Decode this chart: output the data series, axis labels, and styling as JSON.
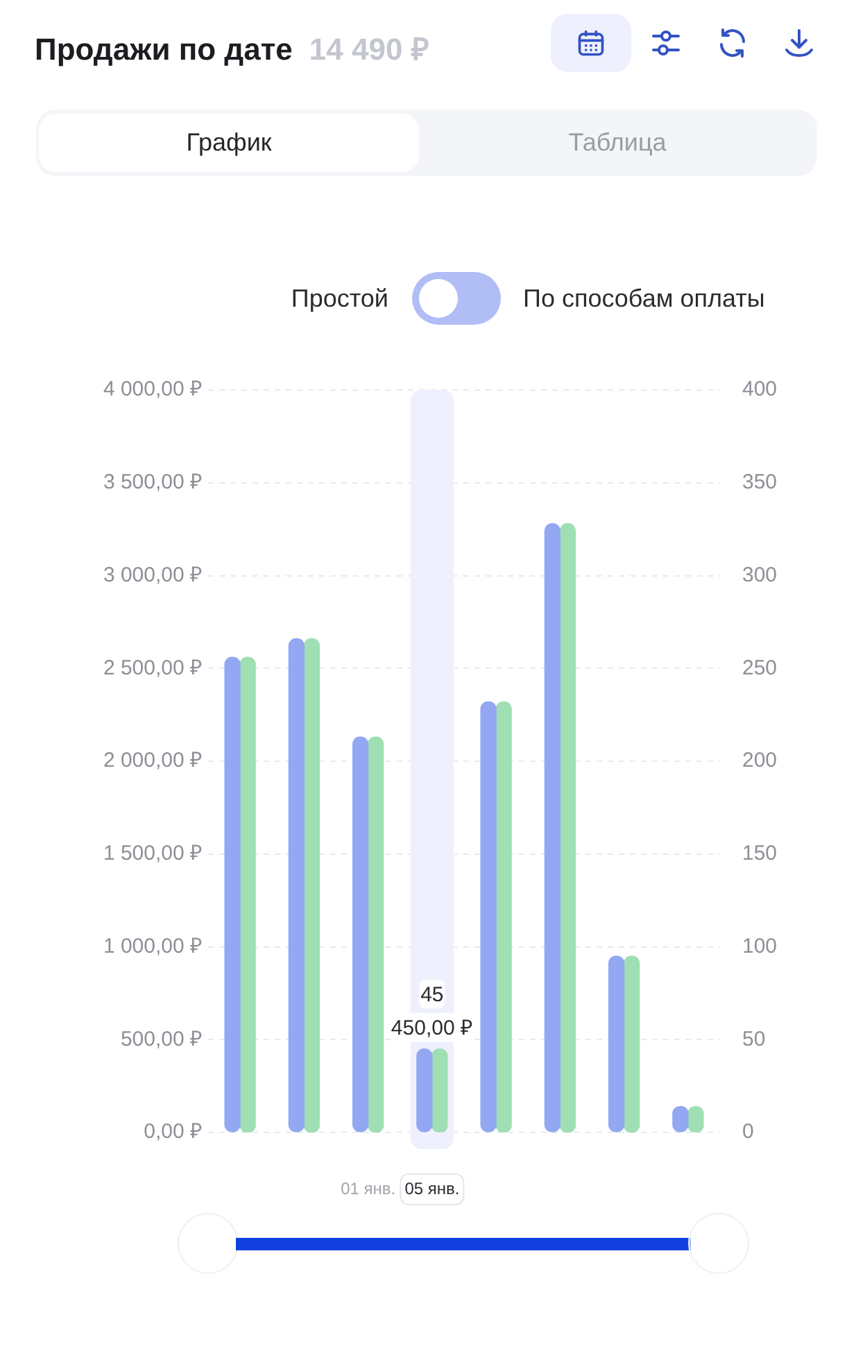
{
  "chart_data": {
    "type": "bar",
    "title": "Продажи по дате",
    "subtitle": "14 490 ₽",
    "annotations": [
      "График",
      "Таблица",
      "Простой",
      "По способам оплаты"
    ],
    "categories": [
      null,
      null,
      "01 янв.",
      "05 янв.",
      null,
      null,
      null,
      null
    ],
    "series": [
      {
        "color": "#93a7f3",
        "values": [
          2560,
          2660,
          2130,
          450,
          2320,
          3280,
          950,
          140
        ],
        "value_labels": [
          null,
          null,
          null,
          "450,00 ₽",
          null,
          null,
          null,
          null
        ]
      },
      {
        "color": "#9fdfb3",
        "axis": "y2",
        "values": [
          256,
          266,
          213,
          45,
          232,
          328,
          95,
          14
        ],
        "value_labels": [
          null,
          null,
          null,
          "45",
          null,
          null,
          null,
          null
        ]
      }
    ],
    "ylim": [
      0,
      4000
    ],
    "yticks": [
      {
        "value": 0,
        "label": "0,00 ₽"
      },
      {
        "value": 500,
        "label": "500,00 ₽"
      },
      {
        "value": 1000,
        "label": "1 000,00 ₽"
      },
      {
        "value": 1500,
        "label": "1 500,00 ₽"
      },
      {
        "value": 2000,
        "label": "2 000,00 ₽"
      },
      {
        "value": 2500,
        "label": "2 500,00 ₽"
      },
      {
        "value": 3000,
        "label": "3 000,00 ₽"
      },
      {
        "value": 3500,
        "label": "3 500,00 ₽"
      },
      {
        "value": 4000,
        "label": "4 000,00 ₽"
      }
    ],
    "y2lim": [
      0,
      400
    ],
    "y2ticks": [
      0,
      50,
      100,
      150,
      200,
      250,
      300,
      350,
      400
    ],
    "grid": "y",
    "bands": [
      {
        "axis": "x",
        "from": "05 янв.",
        "to": "05 янв.",
        "color": "#eef0fd"
      }
    ]
  }
}
